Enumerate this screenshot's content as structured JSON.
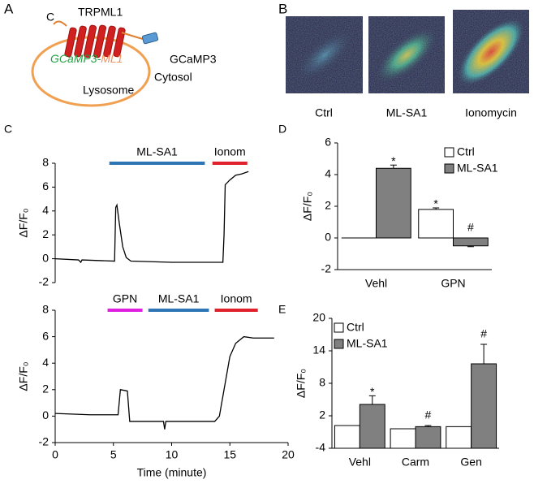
{
  "panel_a": {
    "letter": "A",
    "terminal": "C",
    "channel": "TRPML1",
    "probe": "GCaMP3",
    "fusion_left": "GCaMP3-",
    "fusion_right": "ML1",
    "cytosol": "Cytosol",
    "lysosome": "Lysosome"
  },
  "panel_b": {
    "letter": "B",
    "images": [
      "Ctrl",
      "ML-SA1",
      "Ionomycin"
    ]
  },
  "chart_data": [
    {
      "type": "line",
      "panel": "C",
      "ylabel": "ΔF/F₀",
      "x": [
        0,
        2,
        2.2,
        2.3,
        5.1,
        5.2,
        5.3,
        5.5,
        5.8,
        6.1,
        6.5,
        10,
        14.4,
        14.5,
        14.6,
        15,
        15.5,
        16,
        16.6
      ],
      "series": [
        {
          "color": "#000000",
          "values": [
            0,
            -0.1,
            -0.3,
            -0.1,
            -0.2,
            4.3,
            4.5,
            3,
            1,
            0.1,
            -0.2,
            -0.3,
            -0.3,
            2,
            6.2,
            6.6,
            7,
            7.1,
            7.3
          ]
        }
      ],
      "xlim": [
        0,
        20
      ],
      "ylim": [
        -2,
        8
      ],
      "yticks": [
        -2,
        0,
        2,
        4,
        6,
        8
      ],
      "annotations": [
        {
          "label": "ML-SA1",
          "start": 4.65,
          "end": 12.85,
          "color": "#2e75b6"
        },
        {
          "label": "Ionom",
          "start": 13.5,
          "end": 16.5,
          "color": "#e0202a"
        }
      ]
    },
    {
      "type": "line",
      "ylabel": "ΔF/F₀",
      "xlabel": "Time (minute)",
      "x": [
        0,
        3,
        5.4,
        5.6,
        6.2,
        6.4,
        9.3,
        9.4,
        9.5,
        13.7,
        14.1,
        14.6,
        15,
        15.5,
        16.2,
        17,
        18.8
      ],
      "series": [
        {
          "color": "#000000",
          "values": [
            0.2,
            0.1,
            0.1,
            2,
            1.9,
            -0.4,
            -0.4,
            -1,
            -0.4,
            -0.4,
            0,
            2.5,
            4.5,
            5.5,
            6,
            5.9,
            5.9
          ]
        }
      ],
      "xlim": [
        0,
        20
      ],
      "xticks": [
        0,
        5,
        10,
        15,
        20
      ],
      "ylim": [
        -2,
        8
      ],
      "yticks": [
        -2,
        0,
        2,
        4,
        6,
        8
      ],
      "annotations": [
        {
          "label": "GPN",
          "start": 4.5,
          "end": 7.5,
          "color": "#e020e0"
        },
        {
          "label": "ML-SA1",
          "start": 8,
          "end": 13.2,
          "color": "#2e75b6"
        },
        {
          "label": "Ionom",
          "start": 13.7,
          "end": 17.4,
          "color": "#e0202a"
        }
      ]
    },
    {
      "type": "bar",
      "panel": "D",
      "ylabel": "ΔF/F₀",
      "categories": [
        "Vehl",
        "GPN"
      ],
      "series": [
        {
          "name": "Ctrl",
          "color": "#ffffff",
          "values": [
            0,
            1.8
          ],
          "errors": [
            0,
            0.1
          ],
          "markers": [
            null,
            "*"
          ]
        },
        {
          "name": "ML-SA1",
          "color": "#808080",
          "values": [
            4.4,
            -0.5
          ],
          "errors": [
            0.2,
            0.05
          ],
          "markers": [
            "*",
            "#"
          ]
        }
      ],
      "ylim": [
        -2,
        6
      ],
      "yticks": [
        -2,
        0,
        2,
        4,
        6
      ],
      "bar_base": "zero",
      "legend": "upper right"
    },
    {
      "type": "bar",
      "panel": "E",
      "ylabel": "ΔF/F₀",
      "categories": [
        "Vehl",
        "Carm",
        "Gen"
      ],
      "series": [
        {
          "name": "Ctrl",
          "color": "#ffffff",
          "values": [
            0.2,
            -0.4,
            0
          ],
          "errors": [
            0,
            0,
            0
          ],
          "markers": [
            null,
            null,
            null
          ]
        },
        {
          "name": "ML-SA1",
          "color": "#808080",
          "values": [
            4.1,
            0,
            11.6
          ],
          "errors": [
            1.6,
            0.2,
            3.6
          ],
          "markers": [
            "*",
            "#",
            "#"
          ]
        }
      ],
      "ylim": [
        -4,
        20
      ],
      "yticks": [
        -4,
        2,
        8,
        14,
        20
      ],
      "bar_base": "axis_min",
      "legend": "upper left"
    }
  ]
}
